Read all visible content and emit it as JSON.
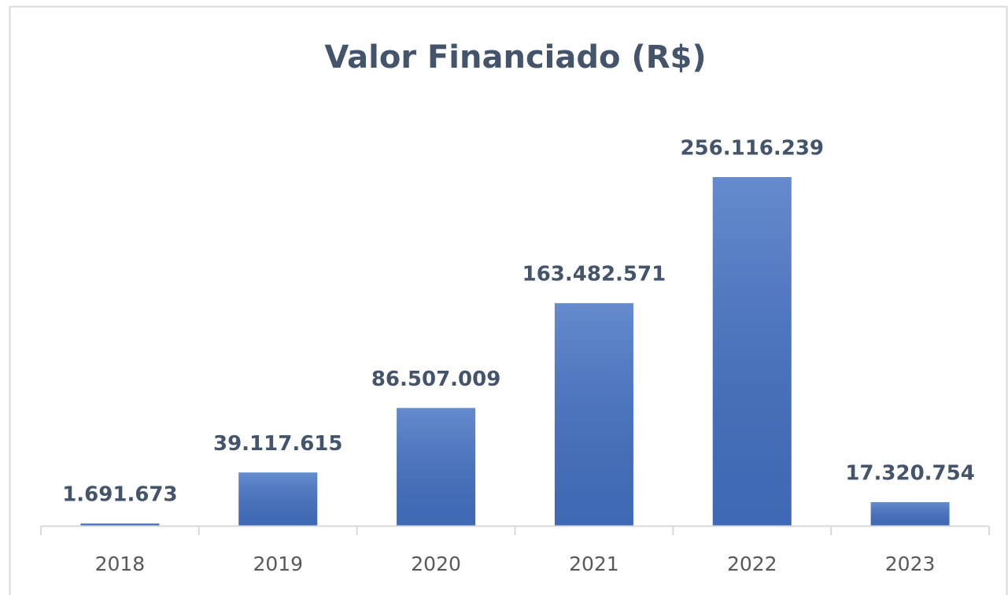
{
  "chart_data": {
    "type": "bar",
    "title": "Valor Financiado (R$)",
    "categories": [
      "2018",
      "2019",
      "2020",
      "2021",
      "2022",
      "2023"
    ],
    "values": [
      1691673,
      39117615,
      86507009,
      163482571,
      256116239,
      17320754
    ],
    "value_labels": [
      "1.691.673",
      "39.117.615",
      "86.507.009",
      "163.482.571",
      "256.116.239",
      "17.320.754"
    ],
    "color": "#4472c4"
  }
}
